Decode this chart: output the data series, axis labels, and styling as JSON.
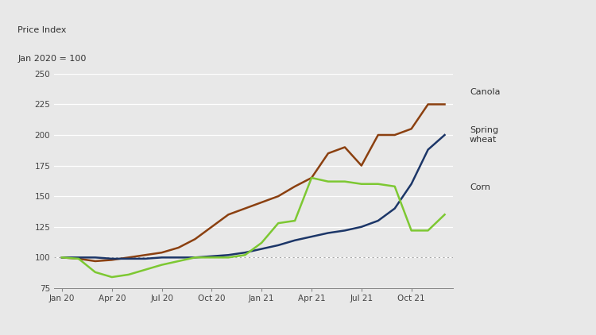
{
  "title_line1": "Price Index",
  "title_line2": "Jan 2020 = 100",
  "ylim": [
    75,
    250
  ],
  "yticks": [
    75,
    100,
    125,
    150,
    175,
    200,
    225,
    250
  ],
  "yticklabels": [
    "75",
    "100",
    "125",
    "150",
    "175",
    "200",
    "225",
    "250"
  ],
  "background_color": "#e8e8e8",
  "x_labels": [
    "Jan 20",
    "Apr 20",
    "Jul 20",
    "Oct 20",
    "Jan 21",
    "Apr 21",
    "Jul 21",
    "Oct 21"
  ],
  "x_tick_positions": [
    0,
    3,
    6,
    9,
    12,
    15,
    18,
    21
  ],
  "canola_label": "Canola",
  "spring_wheat_label": "Spring\nwheat",
  "corn_label": "Corn",
  "canola_color": "#8B4010",
  "spring_wheat_color": "#1c3668",
  "corn_color": "#7dc832",
  "reference_color": "#aaaaaa",
  "canola": [
    100,
    99,
    97,
    98,
    100,
    102,
    104,
    108,
    115,
    125,
    135,
    140,
    145,
    150,
    158,
    165,
    185,
    190,
    175,
    200,
    200,
    205,
    225,
    225
  ],
  "spring_wheat": [
    100,
    100,
    100,
    99,
    99,
    99,
    100,
    100,
    100,
    101,
    102,
    104,
    107,
    110,
    114,
    117,
    120,
    122,
    125,
    130,
    140,
    160,
    188,
    200
  ],
  "corn": [
    100,
    99,
    88,
    84,
    86,
    90,
    94,
    97,
    100,
    100,
    100,
    102,
    112,
    128,
    130,
    165,
    162,
    162,
    160,
    160,
    158,
    122,
    122,
    135
  ],
  "n_points": 24
}
